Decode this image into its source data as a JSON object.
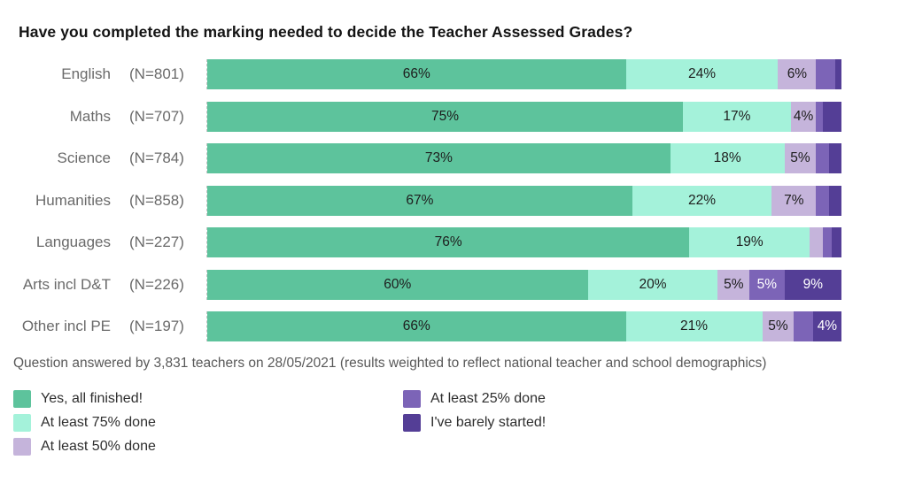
{
  "title": "Have you completed the marking needed to decide the Teacher Assessed Grades?",
  "footer": "Question answered by 3,831 teachers on 28/05/2021 (results weighted to reflect national teacher and school demographics)",
  "colors": {
    "yes_all": "#5dc39c",
    "at75": "#a4f2da",
    "at50": "#c5b4db",
    "at25": "#7c64b7",
    "barely": "#543e96"
  },
  "text_colors": {
    "light_segment": "#1d1d1d",
    "dark_segment": "#ffffff"
  },
  "legend": [
    {
      "key": "yes_all",
      "label": "Yes, all finished!",
      "column": 1
    },
    {
      "key": "at75",
      "label": "At least 75% done",
      "column": 1
    },
    {
      "key": "at50",
      "label": "At least 50% done",
      "column": 1
    },
    {
      "key": "at25",
      "label": "At least 25% done",
      "column": 2
    },
    {
      "key": "barely",
      "label": "I've barely started!",
      "column": 2
    }
  ],
  "chart_data": {
    "type": "bar",
    "orientation": "horizontal-stacked",
    "x_max": 100,
    "label_rule": "segment labels shown only when value >= 4%",
    "series_names": [
      "Yes, all finished!",
      "At least 75% done",
      "At least 50% done",
      "At least 25% done",
      "I've barely started!"
    ],
    "rows": [
      {
        "category": "English",
        "n": "(N=801)",
        "segments": [
          {
            "key": "yes_all",
            "v": 66,
            "label": "66%"
          },
          {
            "key": "at75",
            "v": 24,
            "label": "24%"
          },
          {
            "key": "at50",
            "v": 6,
            "label": "6%"
          },
          {
            "key": "at25",
            "v": 3,
            "label": ""
          },
          {
            "key": "barely",
            "v": 1,
            "label": ""
          }
        ]
      },
      {
        "category": "Maths",
        "n": "(N=707)",
        "segments": [
          {
            "key": "yes_all",
            "v": 75,
            "label": "75%"
          },
          {
            "key": "at75",
            "v": 17,
            "label": "17%"
          },
          {
            "key": "at50",
            "v": 4,
            "label": "4%"
          },
          {
            "key": "at25",
            "v": 1,
            "label": ""
          },
          {
            "key": "barely",
            "v": 3,
            "label": ""
          }
        ]
      },
      {
        "category": "Science",
        "n": "(N=784)",
        "segments": [
          {
            "key": "yes_all",
            "v": 73,
            "label": "73%"
          },
          {
            "key": "at75",
            "v": 18,
            "label": "18%"
          },
          {
            "key": "at50",
            "v": 5,
            "label": "5%"
          },
          {
            "key": "at25",
            "v": 2,
            "label": ""
          },
          {
            "key": "barely",
            "v": 2,
            "label": ""
          }
        ]
      },
      {
        "category": "Humanities",
        "n": "(N=858)",
        "segments": [
          {
            "key": "yes_all",
            "v": 67,
            "label": "67%"
          },
          {
            "key": "at75",
            "v": 22,
            "label": "22%"
          },
          {
            "key": "at50",
            "v": 7,
            "label": "7%"
          },
          {
            "key": "at25",
            "v": 2,
            "label": ""
          },
          {
            "key": "barely",
            "v": 2,
            "label": ""
          }
        ]
      },
      {
        "category": "Languages",
        "n": "(N=227)",
        "segments": [
          {
            "key": "yes_all",
            "v": 76,
            "label": "76%"
          },
          {
            "key": "at75",
            "v": 19,
            "label": "19%"
          },
          {
            "key": "at50",
            "v": 2,
            "label": ""
          },
          {
            "key": "at25",
            "v": 1.5,
            "label": ""
          },
          {
            "key": "barely",
            "v": 1.5,
            "label": ""
          }
        ]
      },
      {
        "category": "Arts incl D&T",
        "n": "(N=226)",
        "segments": [
          {
            "key": "yes_all",
            "v": 60,
            "label": "60%"
          },
          {
            "key": "at75",
            "v": 20.5,
            "label": "20%"
          },
          {
            "key": "at50",
            "v": 5,
            "label": "5%"
          },
          {
            "key": "at25",
            "v": 5.5,
            "label": "5%"
          },
          {
            "key": "barely",
            "v": 9,
            "label": "9%"
          }
        ]
      },
      {
        "category": "Other incl PE",
        "n": "(N=197)",
        "segments": [
          {
            "key": "yes_all",
            "v": 66,
            "label": "66%"
          },
          {
            "key": "at75",
            "v": 21.5,
            "label": "21%"
          },
          {
            "key": "at50",
            "v": 5,
            "label": "5%"
          },
          {
            "key": "at25",
            "v": 3,
            "label": ""
          },
          {
            "key": "barely",
            "v": 4.5,
            "label": "4%"
          }
        ]
      }
    ]
  }
}
